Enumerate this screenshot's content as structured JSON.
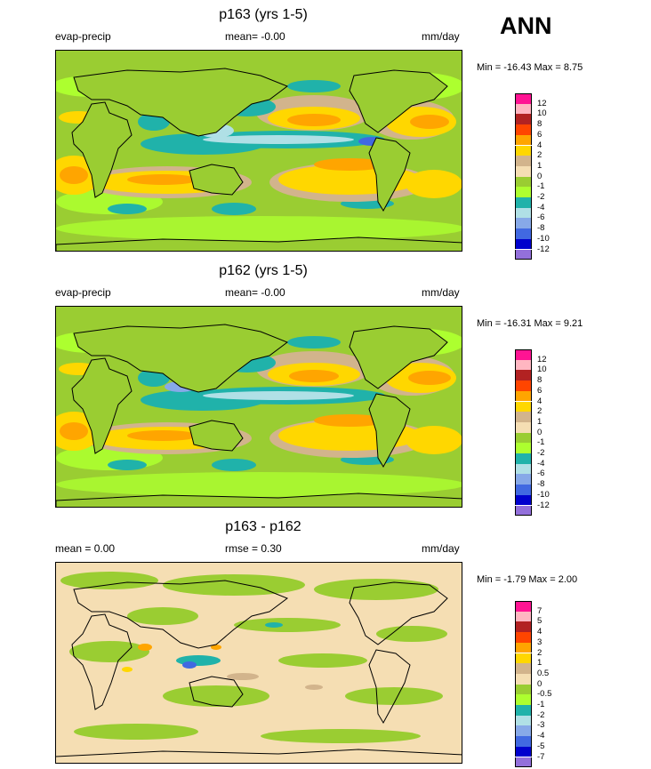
{
  "season": "ANN",
  "chart_data": [
    {
      "type": "heatmap",
      "title": "p163 (yrs 1-5)",
      "variable": "evap-precip",
      "mean_text": "mean=  -0.00",
      "units": "mm/day",
      "minmax_text": "Min = -16.43 Max =   8.75",
      "min": -16.43,
      "max": 8.75,
      "levels": [
        "12",
        "10",
        "8",
        "6",
        "4",
        "2",
        "1",
        "0",
        "-1",
        "-2",
        "-4",
        "-6",
        "-8",
        "-10",
        "-12"
      ],
      "colors": [
        "#ff1493",
        "#ffb6c1",
        "#b22222",
        "#ff4500",
        "#ffa500",
        "#ffd700",
        "#d2b48c",
        "#f5deb3",
        "#9acd32",
        "#adff2f",
        "#20b2aa",
        "#b0e0e6",
        "#87a9e8",
        "#4169e1",
        "#0000cd",
        "#9370db"
      ]
    },
    {
      "type": "heatmap",
      "title": "p162 (yrs 1-5)",
      "variable": "evap-precip",
      "mean_text": "mean=  -0.00",
      "units": "mm/day",
      "minmax_text": "Min = -16.31 Max =   9.21",
      "min": -16.31,
      "max": 9.21,
      "levels": [
        "12",
        "10",
        "8",
        "6",
        "4",
        "2",
        "1",
        "0",
        "-1",
        "-2",
        "-4",
        "-6",
        "-8",
        "-10",
        "-12"
      ],
      "colors": [
        "#ff1493",
        "#ffb6c1",
        "#b22222",
        "#ff4500",
        "#ffa500",
        "#ffd700",
        "#d2b48c",
        "#f5deb3",
        "#9acd32",
        "#adff2f",
        "#20b2aa",
        "#b0e0e6",
        "#87a9e8",
        "#4169e1",
        "#0000cd",
        "#9370db"
      ]
    },
    {
      "type": "heatmap",
      "title": "p163 - p162",
      "variable": "mean =   0.00",
      "mean_text": "rmse =   0.30",
      "units": "mm/day",
      "minmax_text": "Min =  -1.79 Max =   2.00",
      "min": -1.79,
      "max": 2.0,
      "levels": [
        "7",
        "5",
        "4",
        "3",
        "2",
        "1",
        "0.5",
        "0",
        "-0.5",
        "-1",
        "-2",
        "-3",
        "-4",
        "-5",
        "-7"
      ],
      "colors": [
        "#ff1493",
        "#ffb6c1",
        "#b22222",
        "#ff4500",
        "#ffa500",
        "#ffd700",
        "#d2b48c",
        "#f5deb3",
        "#9acd32",
        "#adff2f",
        "#20b2aa",
        "#b0e0e6",
        "#87a9e8",
        "#4169e1",
        "#0000cd",
        "#9370db"
      ]
    }
  ]
}
